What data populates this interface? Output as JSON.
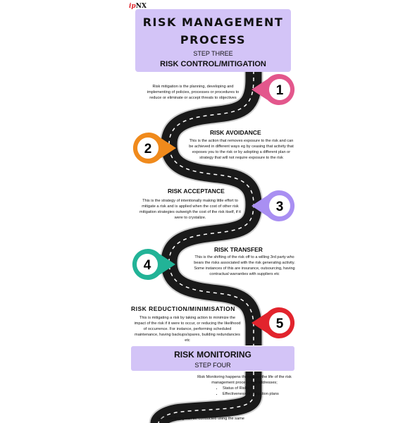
{
  "logo": {
    "accent": "ip",
    "rest": "NX"
  },
  "header": {
    "title_line1": "RISK MANAGEMENT",
    "title_line2": "PROCESS",
    "step": "STEP THREE",
    "subtitle": "RISK CONTROL/MITIGATION"
  },
  "intro": "Risk mitigation is the planning, developing and implementing of policies, processes or procedures to reduce or eliminate or accept threats to objectives",
  "sections": [
    {
      "heading": "RISK AVOIDANCE",
      "text": "This is the action that removes exposure to the risk and can be achieved in different ways eg by ceasing that activity that exposes you to the risk or by adopting a different plan or strategy that will not require exposure to the risk"
    },
    {
      "heading": "RISK ACCEPTANCE",
      "text": "This is the strategy of intentionally making little effort to mitigate a risk and is applied when the cost of other risk mitigation strategies outweigh the cost of the risk itself, if it were to crystalize."
    },
    {
      "heading": "RISK TRANSFER",
      "text": "This is the shifting of the risk off to a willing 3rd party who bears the risks associated with the risk generating activity. Some instances of this are insurance, outsourcing, having contractual warranties with suppliers etc"
    },
    {
      "heading": "RISK REDUCTION/MINIMISATION",
      "text": "This is mitigating a risk by taking action to minimize the impact of the risk if it were to occur, or reducing the likelihood of occurrence. For instance, performing scheduled maintenance, having backups/spares, building redundancies etc"
    }
  ],
  "markers": [
    {
      "label": "1",
      "color": "#e3578c"
    },
    {
      "label": "2",
      "color": "#f08a1c"
    },
    {
      "label": "3",
      "color": "#a98ff2"
    },
    {
      "label": "4",
      "color": "#22b397"
    },
    {
      "label": "5",
      "color": "#e2242d"
    }
  ],
  "monitoring": {
    "title": "RISK MONITORING",
    "step": "STEP FOUR",
    "text": "Risk Monitoring happens throughout the life of the risk management process and addresses;",
    "bullets": [
      "Status of Risks",
      "Effectiveness of mitigation plans"
    ],
    "footer": "Risk monitoring can be conducted using the same"
  },
  "colors": {
    "road": "#1a1a1a",
    "road_line": "#ffffff",
    "box": "#d3c4f7"
  }
}
